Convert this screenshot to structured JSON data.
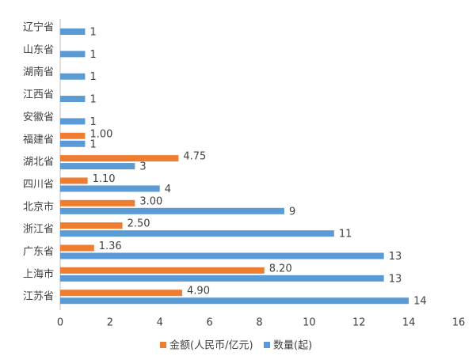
{
  "chart_data": {
    "type": "bar",
    "orientation": "horizontal",
    "categories": [
      "辽宁省",
      "山东省",
      "湖南省",
      "江西省",
      "安徽省",
      "福建省",
      "湖北省",
      "四川省",
      "北京市",
      "浙江省",
      "广东省",
      "上海市",
      "江苏省"
    ],
    "series": [
      {
        "name": "金额(人民币/亿元)",
        "color": "#ed7d31",
        "values": [
          null,
          null,
          null,
          null,
          null,
          1.0,
          4.75,
          1.1,
          3.0,
          2.5,
          1.36,
          8.2,
          4.9
        ],
        "value_labels": [
          null,
          null,
          null,
          null,
          null,
          "1.00",
          "4.75",
          "1.10",
          "3.00",
          "2.50",
          "1.36",
          "8.20",
          "4.90"
        ]
      },
      {
        "name": "数量(起)",
        "color": "#5b9bd5",
        "values": [
          1,
          1,
          1,
          1,
          1,
          1,
          3,
          4,
          9,
          11,
          13,
          13,
          14
        ]
      }
    ],
    "xlim": [
      0,
      16
    ],
    "xticks": [
      0,
      2,
      4,
      6,
      8,
      10,
      12,
      14,
      16
    ],
    "grid": false,
    "legend": "bottom"
  }
}
